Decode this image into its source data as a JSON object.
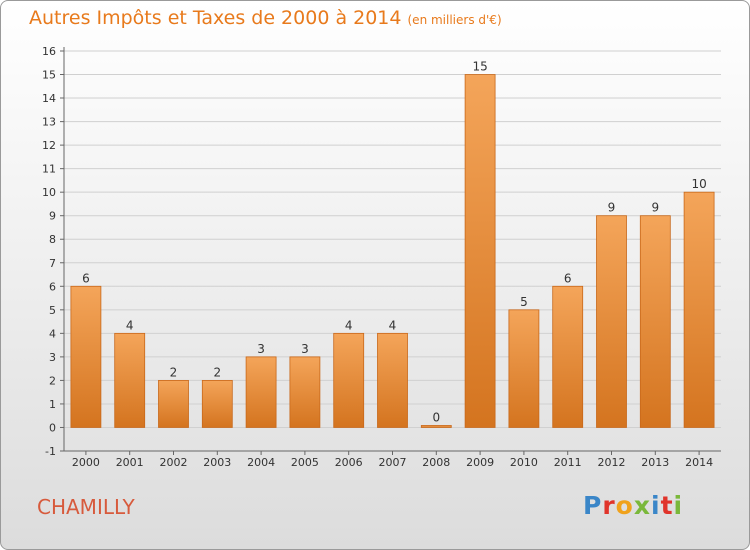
{
  "header": {
    "title": "Autres Impôts et Taxes de 2000 à 2014",
    "subtitle": "(en milliers d'€)"
  },
  "commune": "CHAMILLY",
  "logo": {
    "text": "Proxiti",
    "letters": [
      {
        "ch": "P",
        "color": "#3a86c8"
      },
      {
        "ch": "r",
        "color": "#e0342b"
      },
      {
        "ch": "o",
        "color": "#f0a21c"
      },
      {
        "ch": "x",
        "color": "#7ab83a"
      },
      {
        "ch": "i",
        "color": "#3a86c8"
      },
      {
        "ch": "t",
        "color": "#e0342b"
      },
      {
        "ch": "i",
        "color": "#7ab83a"
      }
    ]
  },
  "colors": {
    "bar_top": "#f4a55a",
    "bar_bottom": "#d4741f",
    "bar_edge": "#c8681a",
    "title": "#e87a1c",
    "commune": "#d75a3c",
    "grid": "#d0d0d0"
  },
  "chart_data": {
    "type": "bar",
    "categories": [
      "2000",
      "2001",
      "2002",
      "2003",
      "2004",
      "2005",
      "2006",
      "2007",
      "2008",
      "2009",
      "2010",
      "2011",
      "2012",
      "2013",
      "2014"
    ],
    "values": [
      6,
      4,
      2,
      2,
      3,
      3,
      4,
      4,
      0,
      15,
      5,
      6,
      9,
      9,
      10
    ],
    "value_labels": [
      "6",
      "4",
      "2",
      "2",
      "3",
      "3",
      "4",
      "4",
      "0",
      "15",
      "5",
      "6",
      "9",
      "9",
      "10"
    ],
    "y_ticks": [
      "-1",
      "0",
      "1",
      "2",
      "3",
      "4",
      "5",
      "6",
      "7",
      "8",
      "9",
      "10",
      "11",
      "12",
      "13",
      "14",
      "15",
      "16"
    ],
    "ylim": [
      -1,
      16
    ],
    "title": "Autres Impôts et Taxes de 2000 à 2014",
    "xlabel": "",
    "ylabel": "",
    "grid": true,
    "legend": "none"
  }
}
